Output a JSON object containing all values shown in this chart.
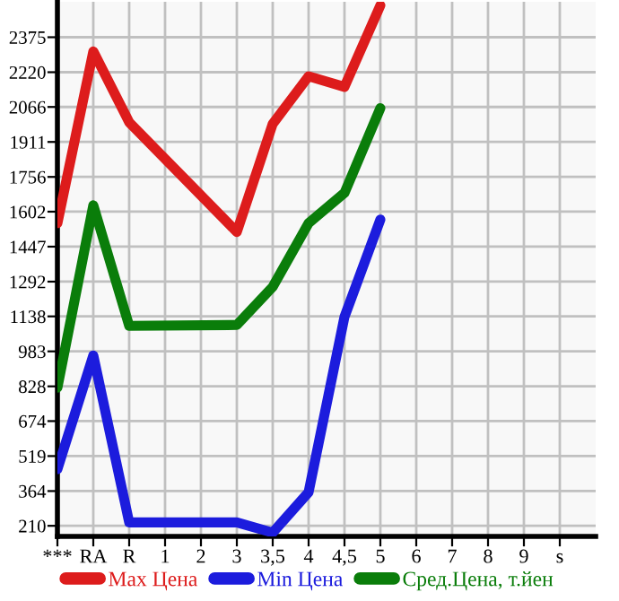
{
  "chart_data": {
    "type": "line",
    "categories": [
      "***",
      "RA",
      "R",
      "1",
      "2",
      "3",
      "3,5",
      "4",
      "4,5",
      "5",
      "6",
      "7",
      "8",
      "9",
      "s"
    ],
    "series": [
      {
        "name": "Max Цена",
        "color": "#dd1c1c",
        "values": [
          1551,
          2312,
          1998,
          null,
          null,
          1512,
          1991,
          2202,
          2155,
          2516,
          null,
          null,
          null,
          null,
          null
        ]
      },
      {
        "name": "Min Цена",
        "color": "#1c1cdd",
        "values": [
          461,
          965,
          225,
          null,
          null,
          225,
          180,
          359,
          1136,
          1567,
          null,
          null,
          null,
          null,
          null
        ]
      },
      {
        "name": "Сред.Цена, т.йен",
        "color": "#0a7d0a",
        "values": [
          822,
          1630,
          1096,
          null,
          null,
          1100,
          1269,
          1551,
          1685,
          2061,
          null,
          null,
          null,
          null,
          null
        ]
      }
    ],
    "ylim": [
      163,
      2532
    ],
    "yticks": [
      210,
      364,
      519,
      674,
      828,
      983,
      1138,
      1292,
      1447,
      1602,
      1756,
      1911,
      2066,
      2220,
      2375
    ],
    "grid": true,
    "legend": "bottom",
    "marker": "none",
    "line_style": "solid"
  }
}
